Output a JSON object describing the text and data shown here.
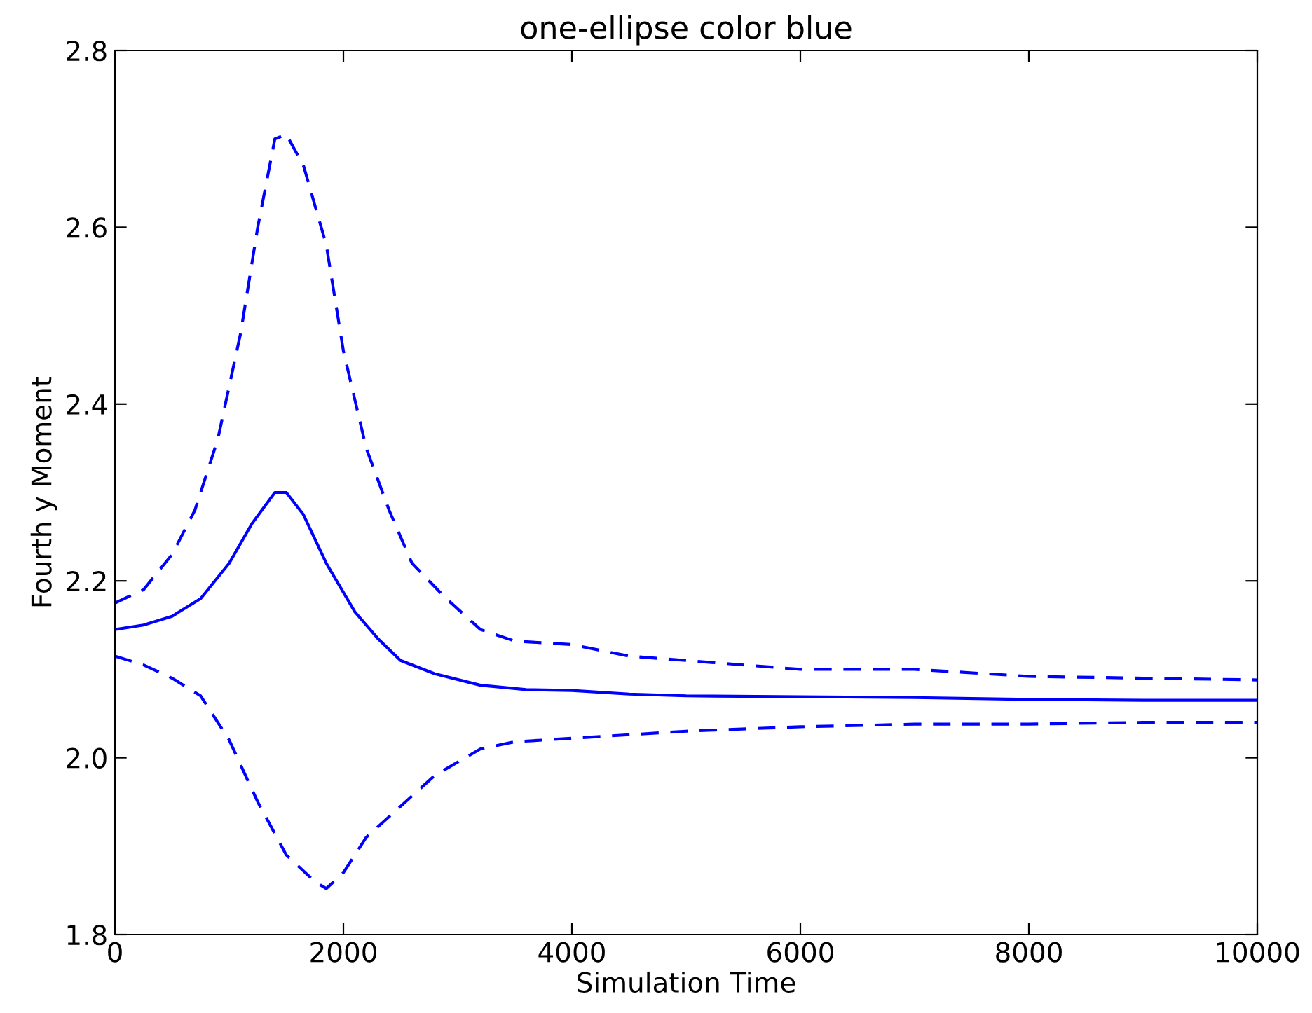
{
  "chart_data": {
    "type": "line",
    "title": "one-ellipse color blue",
    "xlabel": "Simulation Time",
    "ylabel": "Fourth y Moment",
    "xlim": [
      0,
      10000
    ],
    "xticks": [
      0,
      2000,
      4000,
      6000,
      8000,
      10000
    ],
    "ylim": [
      1.8,
      2.8
    ],
    "yticks": [
      {
        "value": 1.8,
        "label": "1.8"
      },
      {
        "value": 2.0,
        "label": "2.0"
      },
      {
        "value": 2.2,
        "label": "2.2"
      },
      {
        "value": 2.4,
        "label": "2.4"
      },
      {
        "value": 2.6,
        "label": "2.6"
      },
      {
        "value": 2.8,
        "label": "2.8"
      }
    ],
    "grid": false,
    "legend": false,
    "marker": "none",
    "series": [
      {
        "color": "#0000ff",
        "line_style": "solid",
        "x": [
          0,
          250,
          500,
          750,
          1000,
          1200,
          1400,
          1500,
          1650,
          1850,
          2100,
          2300,
          2500,
          2800,
          3200,
          3600,
          4000,
          4500,
          5000,
          6000,
          7000,
          8000,
          9000,
          10000
        ],
        "values": [
          2.145,
          2.15,
          2.16,
          2.18,
          2.22,
          2.265,
          2.3,
          2.3,
          2.275,
          2.22,
          2.165,
          2.135,
          2.11,
          2.095,
          2.082,
          2.077,
          2.076,
          2.072,
          2.07,
          2.069,
          2.068,
          2.066,
          2.065,
          2.065
        ]
      },
      {
        "color": "#0000ff",
        "line_style": "dashed",
        "x": [
          0,
          250,
          500,
          700,
          900,
          1100,
          1250,
          1400,
          1500,
          1650,
          1850,
          2000,
          2200,
          2400,
          2600,
          2900,
          3200,
          3500,
          4000,
          4500,
          5000,
          6000,
          7000,
          8000,
          9000,
          10000
        ],
        "values": [
          2.175,
          2.19,
          2.23,
          2.28,
          2.36,
          2.48,
          2.6,
          2.7,
          2.705,
          2.67,
          2.58,
          2.46,
          2.35,
          2.28,
          2.22,
          2.18,
          2.145,
          2.132,
          2.128,
          2.115,
          2.11,
          2.1,
          2.1,
          2.092,
          2.09,
          2.088
        ]
      },
      {
        "color": "#0000ff",
        "line_style": "dashed",
        "x": [
          0,
          250,
          500,
          750,
          1000,
          1250,
          1500,
          1750,
          1850,
          2000,
          2200,
          2500,
          2800,
          3200,
          3500,
          4000,
          5000,
          6000,
          7000,
          8000,
          9000,
          10000
        ],
        "values": [
          2.115,
          2.105,
          2.09,
          2.07,
          2.02,
          1.95,
          1.89,
          1.86,
          1.852,
          1.87,
          1.91,
          1.945,
          1.98,
          2.01,
          2.018,
          2.022,
          2.03,
          2.035,
          2.038,
          2.038,
          2.04,
          2.04
        ]
      }
    ]
  }
}
